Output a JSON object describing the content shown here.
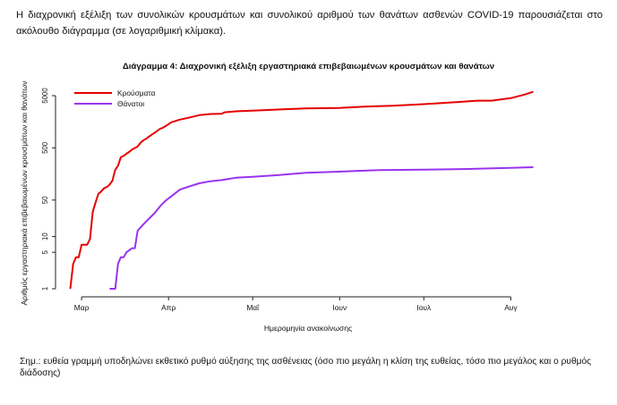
{
  "intro_text": "Η διαχρονική εξέλιξη των συνολικών κρουσμάτων και συνολικού αριθμού των θανάτων ασθενών COVID-19 παρουσιάζεται στο ακόλουθο διάγραμμα (σε λογαριθμική κλίμακα).",
  "note_text": "Σημ.: ευθεία γραμμή υποδηλώνει εκθετικό ρυθμό αύξησης της ασθένειας (όσο πιο μεγάλη η κλίση της ευθείας, τόσο πιο μεγάλος και ο ρυθμός διάδοσης)",
  "chart_data": {
    "type": "line",
    "title": "Διάγραμμα 4: Διαχρονική εξέλιξη εργαστηριακά επιβεβαιωμένων κρουσμάτων και θανάτων",
    "xlabel": "Ημερομηνία ανακοίνωσης",
    "ylabel": "Αριθμός εργαστηριακά επιβεβαιωμένων κρουσμάτων και θανάτων",
    "y_scale": "log",
    "ylim": [
      1,
      5000
    ],
    "y_ticks": [
      1,
      5,
      10,
      50,
      500,
      5000
    ],
    "x_ticks": [
      {
        "date": "2020-03-01",
        "label": "Μαρ"
      },
      {
        "date": "2020-04-01",
        "label": "Απρ"
      },
      {
        "date": "2020-05-01",
        "label": "Μαΐ"
      },
      {
        "date": "2020-06-01",
        "label": "Ιουν"
      },
      {
        "date": "2020-07-01",
        "label": "Ιουλ"
      },
      {
        "date": "2020-08-01",
        "label": "Αυγ"
      }
    ],
    "xlim": [
      "2020-02-22",
      "2020-08-13"
    ],
    "legend": "top-left",
    "grid": false,
    "series": [
      {
        "name": "Κρούσματα",
        "color": "#e60000",
        "points": [
          [
            "2020-02-26",
            1
          ],
          [
            "2020-02-27",
            3
          ],
          [
            "2020-02-28",
            4
          ],
          [
            "2020-02-29",
            4
          ],
          [
            "2020-03-01",
            7
          ],
          [
            "2020-03-03",
            7
          ],
          [
            "2020-03-04",
            9
          ],
          [
            "2020-03-05",
            30
          ],
          [
            "2020-03-06",
            45
          ],
          [
            "2020-03-07",
            66
          ],
          [
            "2020-03-08",
            73
          ],
          [
            "2020-03-09",
            84
          ],
          [
            "2020-03-10",
            89
          ],
          [
            "2020-03-11",
            99
          ],
          [
            "2020-03-12",
            117
          ],
          [
            "2020-03-13",
            190
          ],
          [
            "2020-03-14",
            228
          ],
          [
            "2020-03-15",
            331
          ],
          [
            "2020-03-16",
            352
          ],
          [
            "2020-03-17",
            387
          ],
          [
            "2020-03-18",
            418
          ],
          [
            "2020-03-19",
            464
          ],
          [
            "2020-03-20",
            495
          ],
          [
            "2020-03-21",
            530
          ],
          [
            "2020-03-22",
            624
          ],
          [
            "2020-03-23",
            695
          ],
          [
            "2020-03-24",
            743
          ],
          [
            "2020-03-25",
            821
          ],
          [
            "2020-03-26",
            892
          ],
          [
            "2020-03-27",
            966
          ],
          [
            "2020-03-28",
            1061
          ],
          [
            "2020-03-29",
            1156
          ],
          [
            "2020-03-30",
            1212
          ],
          [
            "2020-03-31",
            1314
          ],
          [
            "2020-04-02",
            1544
          ],
          [
            "2020-04-05",
            1735
          ],
          [
            "2020-04-08",
            1884
          ],
          [
            "2020-04-12",
            2114
          ],
          [
            "2020-04-16",
            2224
          ],
          [
            "2020-04-20",
            2245
          ],
          [
            "2020-04-21",
            2401
          ],
          [
            "2020-04-25",
            2506
          ],
          [
            "2020-05-01",
            2591
          ],
          [
            "2020-05-10",
            2710
          ],
          [
            "2020-05-20",
            2850
          ],
          [
            "2020-06-01",
            2918
          ],
          [
            "2020-06-10",
            3088
          ],
          [
            "2020-06-20",
            3203
          ],
          [
            "2020-07-01",
            3432
          ],
          [
            "2020-07-10",
            3672
          ],
          [
            "2020-07-20",
            4007
          ],
          [
            "2020-07-25",
            4012
          ],
          [
            "2020-08-01",
            4477
          ],
          [
            "2020-08-06",
            5270
          ],
          [
            "2020-08-09",
            5942
          ]
        ]
      },
      {
        "name": "Θάνατοι",
        "color": "#9933ee",
        "points": [
          [
            "2020-03-11",
            1
          ],
          [
            "2020-03-13",
            1
          ],
          [
            "2020-03-14",
            3
          ],
          [
            "2020-03-15",
            4
          ],
          [
            "2020-03-16",
            4
          ],
          [
            "2020-03-17",
            5
          ],
          [
            "2020-03-19",
            6
          ],
          [
            "2020-03-20",
            6
          ],
          [
            "2020-03-21",
            13
          ],
          [
            "2020-03-23",
            17
          ],
          [
            "2020-03-25",
            22
          ],
          [
            "2020-03-27",
            28
          ],
          [
            "2020-03-29",
            38
          ],
          [
            "2020-03-31",
            49
          ],
          [
            "2020-04-02",
            59
          ],
          [
            "2020-04-05",
            79
          ],
          [
            "2020-04-08",
            90
          ],
          [
            "2020-04-12",
            105
          ],
          [
            "2020-04-16",
            115
          ],
          [
            "2020-04-20",
            121
          ],
          [
            "2020-04-25",
            134
          ],
          [
            "2020-05-01",
            140
          ],
          [
            "2020-05-10",
            150
          ],
          [
            "2020-05-20",
            167
          ],
          [
            "2020-06-01",
            175
          ],
          [
            "2020-06-15",
            187
          ],
          [
            "2020-07-01",
            192
          ],
          [
            "2020-07-15",
            196
          ],
          [
            "2020-08-01",
            207
          ],
          [
            "2020-08-09",
            213
          ]
        ]
      }
    ]
  }
}
